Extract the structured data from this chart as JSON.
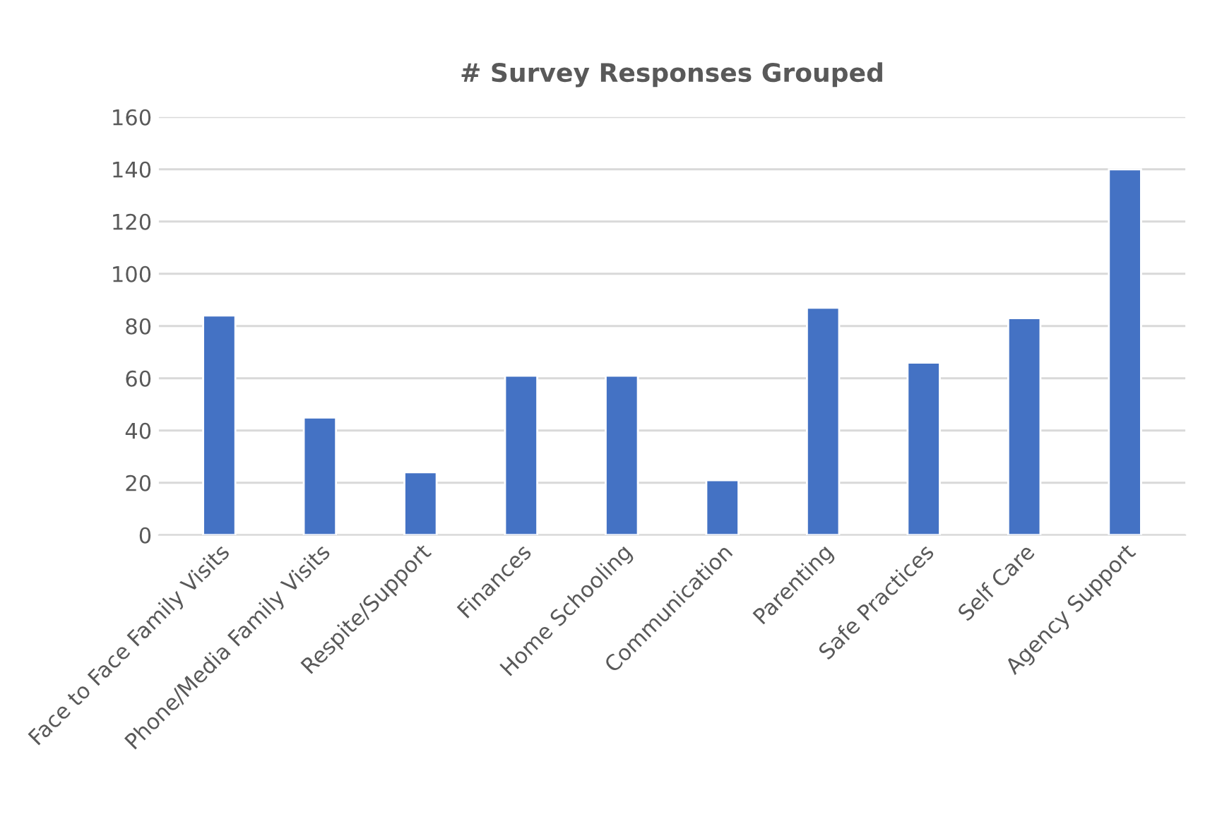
{
  "chart_data": {
    "type": "bar",
    "title": "# Survey Responses Grouped",
    "categories": [
      "Face to Face Family Visits",
      "Phone/Media Family Visits",
      "Respite/Support",
      "Finances",
      "Home Schooling",
      "Communication",
      "Parenting",
      "Safe Practices",
      "Self Care",
      "Agency Support"
    ],
    "values": [
      84,
      45,
      24,
      61,
      61,
      21,
      87,
      66,
      83,
      140
    ],
    "color": "#4472c4",
    "ylim": [
      0,
      160
    ],
    "yticks": [
      0,
      20,
      40,
      60,
      80,
      100,
      120,
      140,
      160
    ],
    "grid": "y",
    "legend": false
  }
}
